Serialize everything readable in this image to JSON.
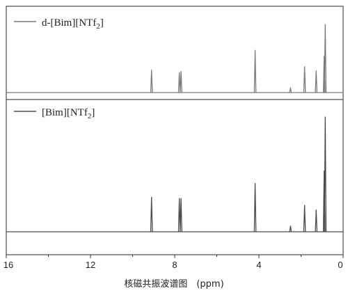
{
  "chart_data": {
    "type": "line",
    "title": "",
    "xlabel": "核磁共振波谱图　(ppm)",
    "ylabel": "",
    "xlim": [
      16,
      0
    ],
    "x_reversed": true,
    "xticks": [
      16,
      12,
      8,
      4,
      0
    ],
    "grid": false,
    "legend_placement": "top-left of each panel",
    "series": [
      {
        "name": "d-[Bim][NTf2]",
        "name_base": "d-[Bim][NTf",
        "name_sub": "2",
        "name_tail": "]",
        "color": "#7a7a7a",
        "panel": "top",
        "peaks": [
          {
            "ppm": 9.1,
            "intensity": 0.33
          },
          {
            "ppm": 7.78,
            "intensity": 0.29
          },
          {
            "ppm": 7.7,
            "intensity": 0.31
          },
          {
            "ppm": 4.18,
            "intensity": 0.62
          },
          {
            "ppm": 2.5,
            "intensity": 0.07
          },
          {
            "ppm": 1.83,
            "intensity": 0.38
          },
          {
            "ppm": 1.28,
            "intensity": 0.32
          },
          {
            "ppm": 0.9,
            "intensity": 0.53
          },
          {
            "ppm": 0.85,
            "intensity": 1.0
          }
        ]
      },
      {
        "name": "[Bim][NTf2]",
        "name_base": "[Bim][NTf",
        "name_sub": "2",
        "name_tail": "]",
        "color": "#4a4a4a",
        "panel": "bottom",
        "peaks": [
          {
            "ppm": 9.1,
            "intensity": 0.3
          },
          {
            "ppm": 7.78,
            "intensity": 0.29
          },
          {
            "ppm": 7.7,
            "intensity": 0.29
          },
          {
            "ppm": 4.18,
            "intensity": 0.42
          },
          {
            "ppm": 2.5,
            "intensity": 0.05
          },
          {
            "ppm": 1.83,
            "intensity": 0.23
          },
          {
            "ppm": 1.28,
            "intensity": 0.19
          },
          {
            "ppm": 0.9,
            "intensity": 0.53
          },
          {
            "ppm": 0.85,
            "intensity": 1.0
          }
        ]
      }
    ]
  }
}
